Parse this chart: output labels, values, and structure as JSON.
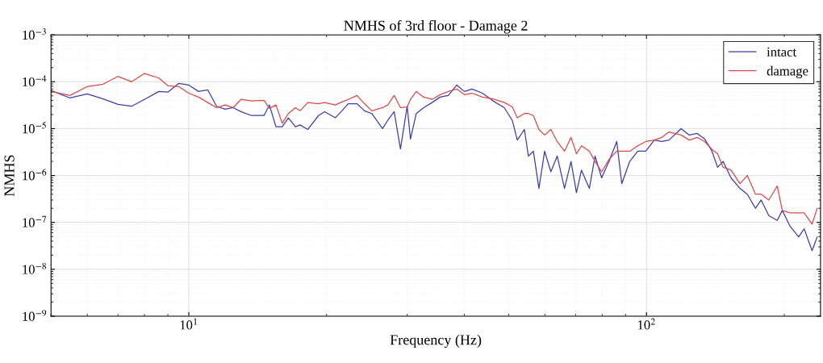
{
  "chart_data": {
    "type": "line",
    "title": "NMHS of 3rd floor - Damage 2",
    "xlabel": "Frequency (Hz)",
    "ylabel": "NMHS",
    "log": "xy",
    "x": [
      5.0,
      5.5,
      6.0,
      6.5,
      7.0,
      7.5,
      8.0,
      8.6,
      9.0,
      9.5,
      10,
      10.5,
      11.0,
      11.5,
      12.0,
      12.5,
      13,
      13.7,
      14.6,
      15.0,
      15.5,
      16.0,
      16.5,
      17.1,
      17.5,
      18.2,
      19.2,
      19.8,
      20.9,
      21.6,
      22.3,
      23.3,
      24.2,
      25.1,
      26.5,
      27.2,
      28.1,
      29.0,
      30.0,
      30.5,
      31.4,
      32.6,
      34.0,
      35.4,
      36.9,
      38.5,
      40.0,
      41.6,
      43.8,
      46.2,
      48.9,
      50.9,
      52.2,
      54.1,
      55.2,
      56.6,
      58.2,
      59.9,
      61.8,
      63.8,
      66.2,
      68.4,
      70.3,
      72.1,
      75.0,
      77.2,
      79.8,
      82.8,
      86.1,
      88.3,
      91.9,
      95.7,
      99.6,
      104,
      108,
      112,
      119,
      124,
      129,
      134,
      139,
      143,
      147,
      153,
      160,
      166,
      173,
      178,
      185,
      193,
      198,
      206,
      215,
      221,
      230,
      236
    ],
    "series": [
      {
        "name": "intact",
        "color": "#3c3cb4",
        "values": [
          6.5e-05,
          4.5e-05,
          5.5e-05,
          4.3e-05,
          3.3e-05,
          3e-05,
          4.2e-05,
          6.2e-05,
          6e-05,
          9.2e-05,
          8.5e-05,
          6.2e-05,
          6.7e-05,
          3e-05,
          2.6e-05,
          2.8e-05,
          2.3e-05,
          1.9e-05,
          1.9e-05,
          3.2e-05,
          1.1e-05,
          1.1e-05,
          1.7e-05,
          1.1e-05,
          1.2e-05,
          9.6e-06,
          1.9e-05,
          2.3e-05,
          1.7e-05,
          2.4e-05,
          3.4e-05,
          3.4e-05,
          2.4e-05,
          2.1e-05,
          1e-05,
          1.5e-05,
          2.3e-05,
          3.7e-06,
          3e-05,
          6e-06,
          2.1e-05,
          2.8e-05,
          3.6e-05,
          4.7e-05,
          5.1e-05,
          8.5e-05,
          6.2e-05,
          7e-05,
          5.7e-05,
          3.9e-05,
          2.8e-05,
          1.5e-05,
          5.7e-06,
          9.6e-06,
          2.6e-06,
          3.3e-06,
          5.3e-07,
          3.3e-06,
          1.2e-06,
          2.6e-06,
          5.3e-07,
          2e-06,
          4.3e-07,
          1.3e-06,
          5.3e-07,
          2.6e-06,
          8.9e-07,
          2e-06,
          5.3e-06,
          6.7e-07,
          2e-06,
          3.3e-06,
          3.3e-06,
          5.7e-06,
          5.3e-06,
          5.7e-06,
          1e-05,
          7.3e-06,
          7.9e-06,
          6e-06,
          3.3e-06,
          1.5e-06,
          2e-06,
          8.9e-07,
          5.3e-07,
          4e-07,
          2e-07,
          3e-07,
          1.4e-07,
          1.1e-07,
          1.8e-07,
          8.2e-08,
          4.9e-08,
          7.3e-08,
          2.5e-08,
          4.9e-08
        ]
      },
      {
        "name": "damage",
        "color": "#e04848",
        "values": [
          6.2e-05,
          5.1e-05,
          7.9e-05,
          8.9e-05,
          0.00013,
          0.0001,
          0.00015,
          0.00012,
          8.2e-05,
          7.9e-05,
          5.7e-05,
          4.7e-05,
          3.6e-05,
          2.8e-05,
          3.2e-05,
          2.8e-05,
          4.2e-05,
          3.9e-05,
          4e-05,
          2.7e-05,
          3.2e-05,
          1.3e-05,
          2.1e-05,
          2.8e-05,
          2.4e-05,
          3.6e-05,
          3.4e-05,
          3.6e-05,
          3.2e-05,
          3.7e-05,
          4.2e-05,
          5.1e-05,
          3.4e-05,
          2.4e-05,
          2.8e-05,
          3.2e-05,
          5.1e-05,
          2.8e-05,
          2.9e-05,
          4.2e-05,
          6.2e-05,
          4.7e-05,
          4.2e-05,
          5.3e-05,
          6.2e-05,
          7e-05,
          5.3e-05,
          5.7e-05,
          4.7e-05,
          4.3e-05,
          3.6e-05,
          2.9e-05,
          1.7e-05,
          2.1e-05,
          2.1e-05,
          1.9e-05,
          9.6e-06,
          7.3e-06,
          9.6e-06,
          5.3e-06,
          3.3e-06,
          6.5e-06,
          2.9e-06,
          4.3e-06,
          3.3e-06,
          2e-06,
          1.2e-06,
          2.2e-06,
          3.3e-06,
          3.3e-06,
          3.3e-06,
          4.3e-06,
          5.3e-06,
          5.7e-06,
          6.5e-06,
          8.5e-06,
          7.3e-06,
          5.7e-06,
          6.5e-06,
          5.3e-06,
          3.6e-06,
          2.9e-06,
          1.5e-06,
          1.3e-06,
          6.7e-07,
          1e-06,
          4e-07,
          4e-07,
          3e-07,
          6e-07,
          1.8e-07,
          1.6e-07,
          1.6e-07,
          1.6e-07,
          9.2e-08,
          2e-07
        ]
      }
    ],
    "xlim": [
      5,
      240
    ],
    "ylim": [
      1e-09,
      0.001
    ],
    "xticks": [
      {
        "value": 10,
        "label": "10$^{1}$"
      },
      {
        "value": 100,
        "label": "10$^{2}$"
      }
    ],
    "yticks": [
      {
        "value": 1e-09,
        "label": "10$^{−9}$"
      },
      {
        "value": 1e-08,
        "label": "10$^{−8}$"
      },
      {
        "value": 1e-07,
        "label": "10$^{−7}$"
      },
      {
        "value": 1e-06,
        "label": "10$^{−6}$"
      },
      {
        "value": 1e-05,
        "label": "10$^{−5}$"
      },
      {
        "value": 0.0001,
        "label": "10$^{−4}$"
      },
      {
        "value": 0.001,
        "label": "10$^{−3}$"
      }
    ],
    "grid": true,
    "legend": "top right",
    "line_style": "solid",
    "marker": "none"
  }
}
